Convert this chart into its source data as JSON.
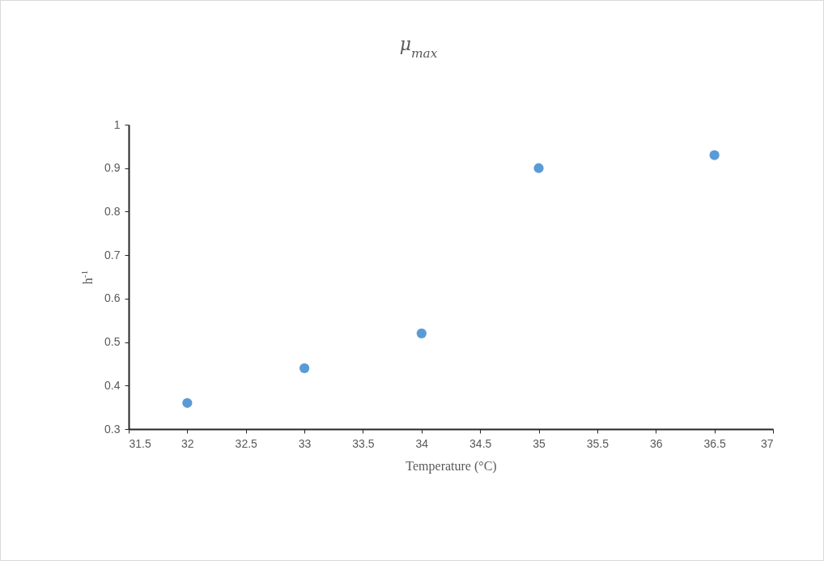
{
  "chart_data": {
    "type": "scatter",
    "title": "μ$_{max}$",
    "xlabel": "Temperature (°C)",
    "ylabel": "h$^{-1}$",
    "x": [
      32,
      33,
      34,
      35,
      36.5
    ],
    "series": [
      {
        "color": "#5b9bd5",
        "values": [
          0.36,
          0.44,
          0.52,
          0.9,
          0.93
        ]
      }
    ],
    "xlim": [
      31.5,
      37
    ],
    "xticks": [
      31.5,
      32,
      32.5,
      33,
      33.5,
      34,
      34.5,
      35,
      35.5,
      36,
      36.5,
      37
    ],
    "ylim": [
      0.3,
      1
    ],
    "yticks": [
      0.3,
      0.4,
      0.5,
      0.6,
      0.7,
      0.8,
      0.9,
      1
    ],
    "grid": false,
    "legend": false,
    "marker": "circle"
  }
}
